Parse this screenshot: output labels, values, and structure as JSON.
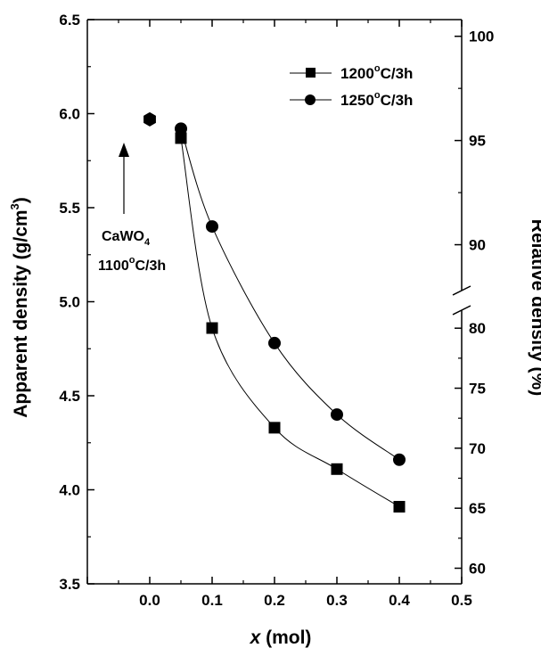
{
  "chart_data": {
    "type": "scatter",
    "xlabel_var": "x",
    "xlabel_unit": " (mol)",
    "ylabel_left": "Apparent density (g/cm",
    "ylabel_left_sup": "3",
    "ylabel_left_close": ")",
    "ylabel_right": "Relative density (%)",
    "xlim": [
      -0.1,
      0.5
    ],
    "ylim": [
      3.5,
      6.5
    ],
    "x_ticks": [
      "0.0",
      "0.1",
      "0.2",
      "0.3",
      "0.4",
      "0.5"
    ],
    "x_tick_values": [
      0.0,
      0.1,
      0.2,
      0.3,
      0.4,
      0.5
    ],
    "y_ticks": [
      "3.5",
      "4.0",
      "4.5",
      "5.0",
      "5.5",
      "6.0",
      "6.5"
    ],
    "y_tick_values": [
      3.5,
      4.0,
      4.5,
      5.0,
      5.5,
      6.0,
      6.5
    ],
    "right_axis": {
      "break": true,
      "upper_segment": {
        "range": [
          87.8,
          100.8
        ],
        "ticks": [
          "90",
          "95",
          "100"
        ],
        "tick_values": [
          90,
          95,
          100
        ]
      },
      "lower_segment": {
        "range": [
          58.7,
          81.5
        ],
        "ticks": [
          "60",
          "65",
          "70",
          "75",
          "80"
        ],
        "tick_values": [
          60,
          65,
          70,
          75,
          80
        ]
      }
    },
    "series": [
      {
        "name": "1200",
        "name_sup": "o",
        "name_tail": "C/3h",
        "marker": "square",
        "points": [
          {
            "x": 0.05,
            "y": 5.87
          },
          {
            "x": 0.1,
            "y": 4.86
          },
          {
            "x": 0.2,
            "y": 4.33
          },
          {
            "x": 0.3,
            "y": 4.11
          },
          {
            "x": 0.4,
            "y": 3.91
          }
        ]
      },
      {
        "name": "1250",
        "name_sup": "o",
        "name_tail": "C/3h",
        "marker": "circle",
        "points": [
          {
            "x": 0.05,
            "y": 5.92
          },
          {
            "x": 0.1,
            "y": 5.4
          },
          {
            "x": 0.2,
            "y": 4.78
          },
          {
            "x": 0.3,
            "y": 4.4
          },
          {
            "x": 0.4,
            "y": 4.16
          }
        ]
      }
    ],
    "reference_point": {
      "marker": "hexagon",
      "x": 0.0,
      "y": 5.97,
      "label_main": "CaWO",
      "label_sub": "4",
      "label_line2_main": "1100",
      "label_line2_sup": "o",
      "label_line2_tail": "C/3h"
    },
    "legend_placement": "top-right",
    "grid": false
  }
}
